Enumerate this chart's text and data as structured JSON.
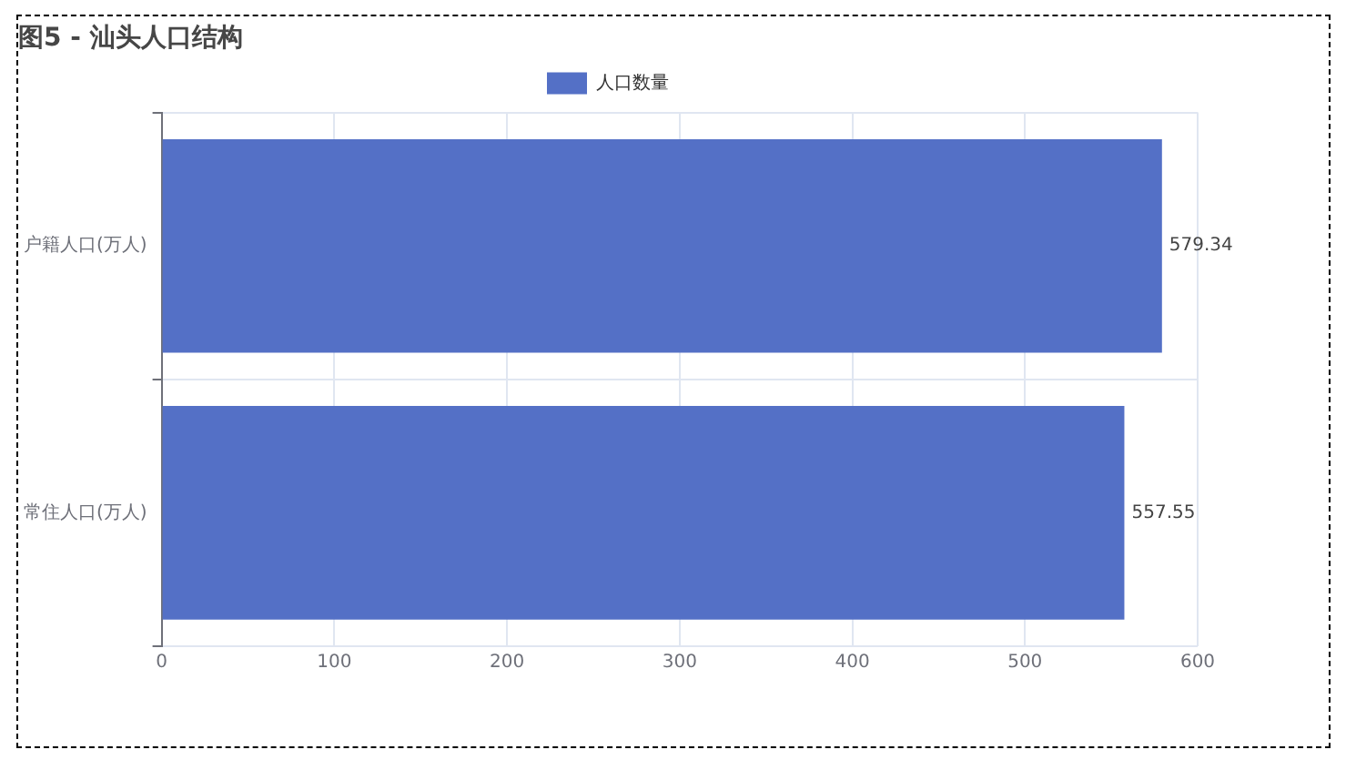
{
  "chart_data": {
    "type": "bar",
    "orientation": "horizontal",
    "title": "图5 - 汕头人口结构",
    "categories": [
      "户籍人口(万人)",
      "常住人口(万人)"
    ],
    "series": [
      {
        "name": "人口数量",
        "color": "#5470c6",
        "values": [
          579.34,
          557.55
        ]
      }
    ],
    "xlim": [
      0,
      600
    ],
    "xticks": [
      0,
      100,
      200,
      300,
      400,
      500,
      600
    ],
    "grid": true,
    "legend": "top",
    "data_labels": true
  }
}
